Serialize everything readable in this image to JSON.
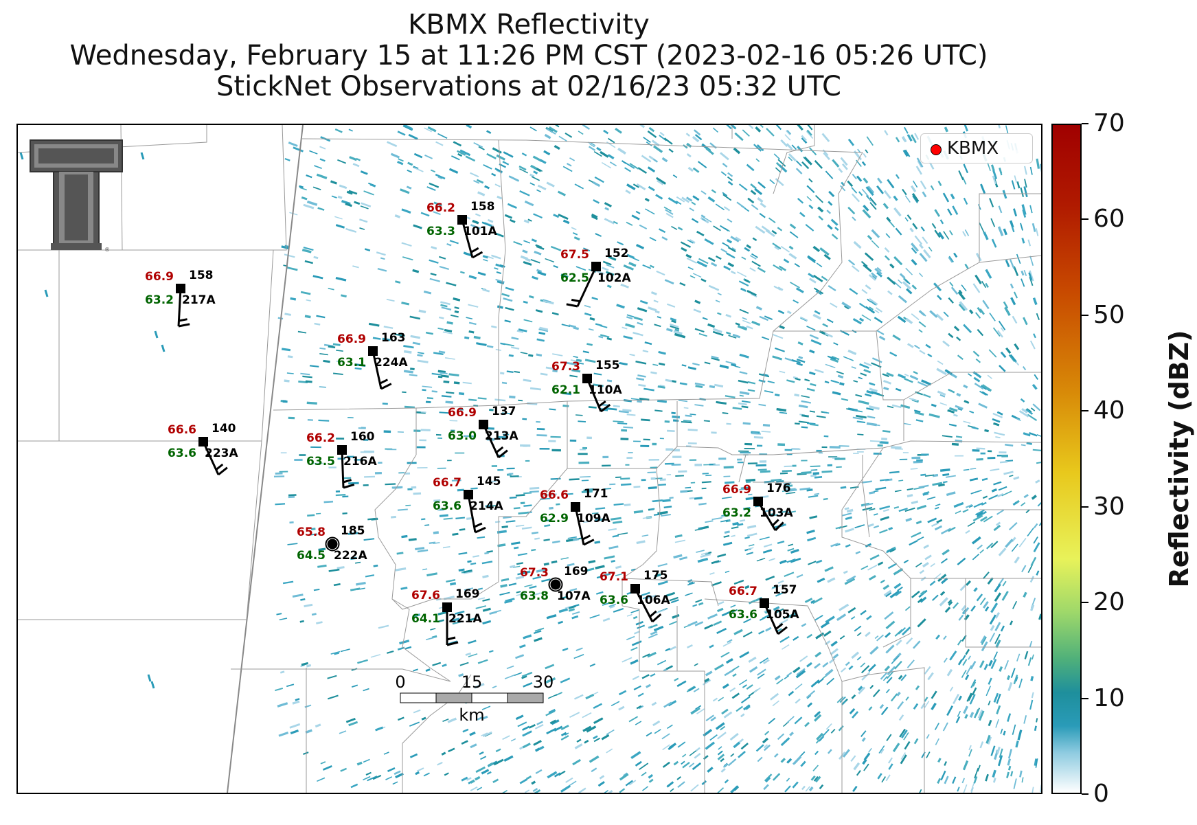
{
  "title": {
    "line1": "KBMX Reflectivity",
    "line2": "Wednesday, February 15 at 11:26 PM CST (2023-02-16 05:26 UTC)",
    "line3": "StickNet Observations at 02/16/23 05:32 UTC"
  },
  "legend": {
    "label": "KBMX",
    "marker_color": "#ff0000"
  },
  "colorbar": {
    "label": "Reflectivity (dBZ)",
    "ticks": [
      "0",
      "10",
      "20",
      "30",
      "40",
      "50",
      "60",
      "70"
    ]
  },
  "scale_bar": {
    "ticks": [
      "0",
      "15",
      "30"
    ],
    "unit": "km"
  },
  "colors": {
    "temperature": "#b00000",
    "dewpoint": "#006400",
    "echo": "#2a9bb8"
  },
  "stations": [
    {
      "id": "101A",
      "temp": "66.2",
      "dew": "63.3",
      "pressure": "158",
      "marker": "square"
    },
    {
      "id": "102A",
      "temp": "67.5",
      "dew": "62.5",
      "pressure": "152",
      "marker": "square"
    },
    {
      "id": "217A",
      "temp": "66.9",
      "dew": "63.2",
      "pressure": "158",
      "marker": "square"
    },
    {
      "id": "224A",
      "temp": "66.9",
      "dew": "63.1",
      "pressure": "163",
      "marker": "square"
    },
    {
      "id": "110A",
      "temp": "67.3",
      "dew": "62.1",
      "pressure": "155",
      "marker": "square"
    },
    {
      "id": "223A",
      "temp": "66.6",
      "dew": "63.6",
      "pressure": "140",
      "marker": "square"
    },
    {
      "id": "216A",
      "temp": "66.2",
      "dew": "63.5",
      "pressure": "160",
      "marker": "square"
    },
    {
      "id": "213A",
      "temp": "66.9",
      "dew": "63.0",
      "pressure": "137",
      "marker": "square"
    },
    {
      "id": "214A",
      "temp": "66.7",
      "dew": "63.6",
      "pressure": "145",
      "marker": "square"
    },
    {
      "id": "109A",
      "temp": "66.6",
      "dew": "62.9",
      "pressure": "171",
      "marker": "square"
    },
    {
      "id": "103A",
      "temp": "66.9",
      "dew": "63.2",
      "pressure": "176",
      "marker": "square"
    },
    {
      "id": "222A",
      "temp": "65.8",
      "dew": "64.5",
      "pressure": "185",
      "marker": "circle"
    },
    {
      "id": "107A",
      "temp": "67.3",
      "dew": "63.8",
      "pressure": "169",
      "marker": "circle"
    },
    {
      "id": "106A",
      "temp": "67.1",
      "dew": "63.6",
      "pressure": "175",
      "marker": "square"
    },
    {
      "id": "221A",
      "temp": "67.6",
      "dew": "64.1",
      "pressure": "169",
      "marker": "square"
    },
    {
      "id": "105A",
      "temp": "66.7",
      "dew": "63.6",
      "pressure": "157",
      "marker": "square"
    }
  ]
}
